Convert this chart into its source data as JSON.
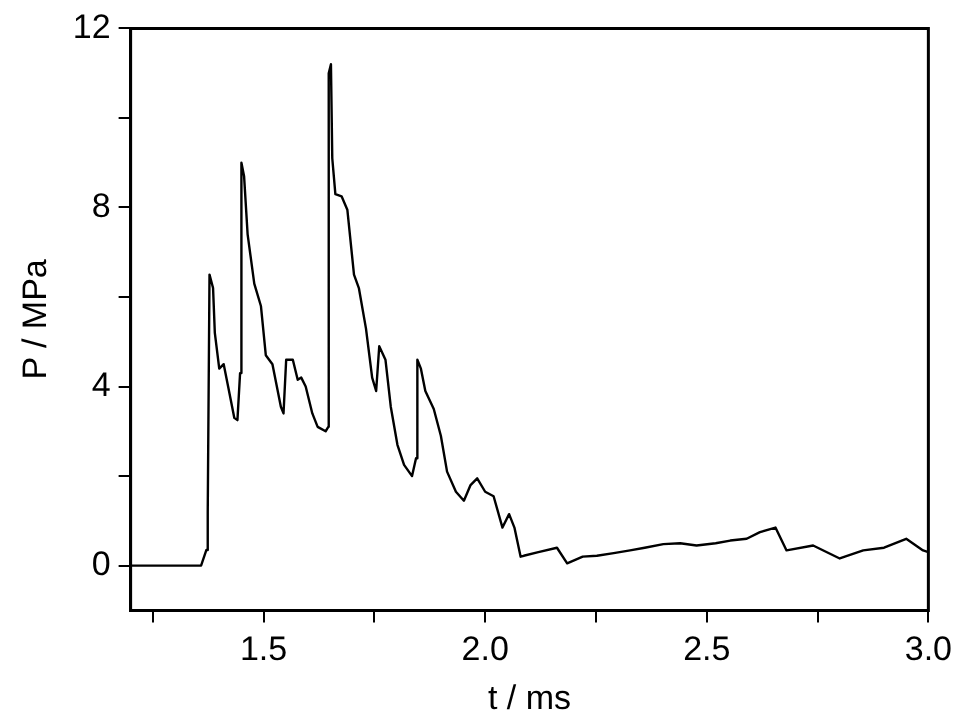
{
  "chart_data": {
    "type": "line",
    "xlabel": "t / ms",
    "ylabel": "P / MPa",
    "color": "#000000",
    "x": [
      1.2,
      1.359,
      1.371,
      1.374,
      1.378,
      1.386,
      1.39,
      1.4,
      1.41,
      1.42,
      1.434,
      1.441,
      1.447,
      1.45,
      1.456,
      1.464,
      1.479,
      1.494,
      1.505,
      1.52,
      1.539,
      1.545,
      1.551,
      1.566,
      1.577,
      1.585,
      1.595,
      1.61,
      1.622,
      1.64,
      1.646,
      1.647,
      1.652,
      1.655,
      1.662,
      1.676,
      1.689,
      1.704,
      1.715,
      1.731,
      1.745,
      1.754,
      1.761,
      1.775,
      1.787,
      1.802,
      1.817,
      1.835,
      1.844,
      1.847,
      1.855,
      1.865,
      1.884,
      1.9,
      1.914,
      1.934,
      1.952,
      1.967,
      1.982,
      2.0,
      2.019,
      2.039,
      2.054,
      2.066,
      2.08,
      2.087,
      2.12,
      2.162,
      2.185,
      2.22,
      2.252,
      2.29,
      2.327,
      2.36,
      2.402,
      2.44,
      2.477,
      2.52,
      2.553,
      2.59,
      2.62,
      2.655,
      2.68,
      2.74,
      2.8,
      2.853,
      2.9,
      2.95,
      2.988,
      3.0
    ],
    "values": [
      0,
      0,
      0.35,
      1.2,
      6.5,
      6.2,
      5.2,
      4.4,
      4.5,
      4.0,
      3.3,
      3.25,
      4.3,
      9.0,
      8.7,
      7.4,
      6.3,
      5.8,
      4.7,
      4.5,
      3.55,
      3.4,
      4.6,
      4.6,
      4.15,
      4.2,
      4.0,
      3.4,
      3.1,
      3.0,
      3.1,
      11.0,
      11.2,
      9.1,
      8.3,
      8.25,
      7.95,
      6.5,
      6.2,
      5.3,
      4.2,
      3.9,
      4.9,
      4.6,
      3.55,
      2.7,
      2.25,
      2.0,
      2.4,
      4.6,
      4.4,
      3.9,
      3.5,
      2.9,
      2.1,
      1.65,
      1.45,
      1.8,
      1.95,
      1.65,
      1.55,
      0.85,
      1.15,
      0.85,
      0.2,
      0.22,
      0.3,
      0.4,
      0.05,
      0.2,
      0.22,
      0.28,
      0.34,
      0.4,
      0.48,
      0.5,
      0.45,
      0.5,
      0.56,
      0.6,
      0.75,
      0.85,
      0.34,
      0.45,
      0.16,
      0.34,
      0.4,
      0.6,
      0.34,
      0.3
    ],
    "xlim": [
      1.2,
      3.0
    ],
    "xticks": [
      {
        "value": 1.25,
        "label": null
      },
      1.5,
      {
        "value": 1.75,
        "label": null
      },
      {
        "value": 2,
        "label": "2.0"
      },
      {
        "value": 2.25,
        "label": null
      },
      2.5,
      {
        "value": 2.75,
        "label": null
      },
      {
        "value": 3,
        "label": "3.0"
      }
    ],
    "ylim": [
      -1,
      12
    ],
    "yticks": [
      0,
      {
        "value": 2,
        "label": null
      },
      4,
      {
        "value": 6,
        "label": null
      },
      8,
      {
        "value": 10,
        "label": null
      },
      12
    ],
    "grid": false,
    "legend": false,
    "marker": "none",
    "line_style": "solid"
  }
}
